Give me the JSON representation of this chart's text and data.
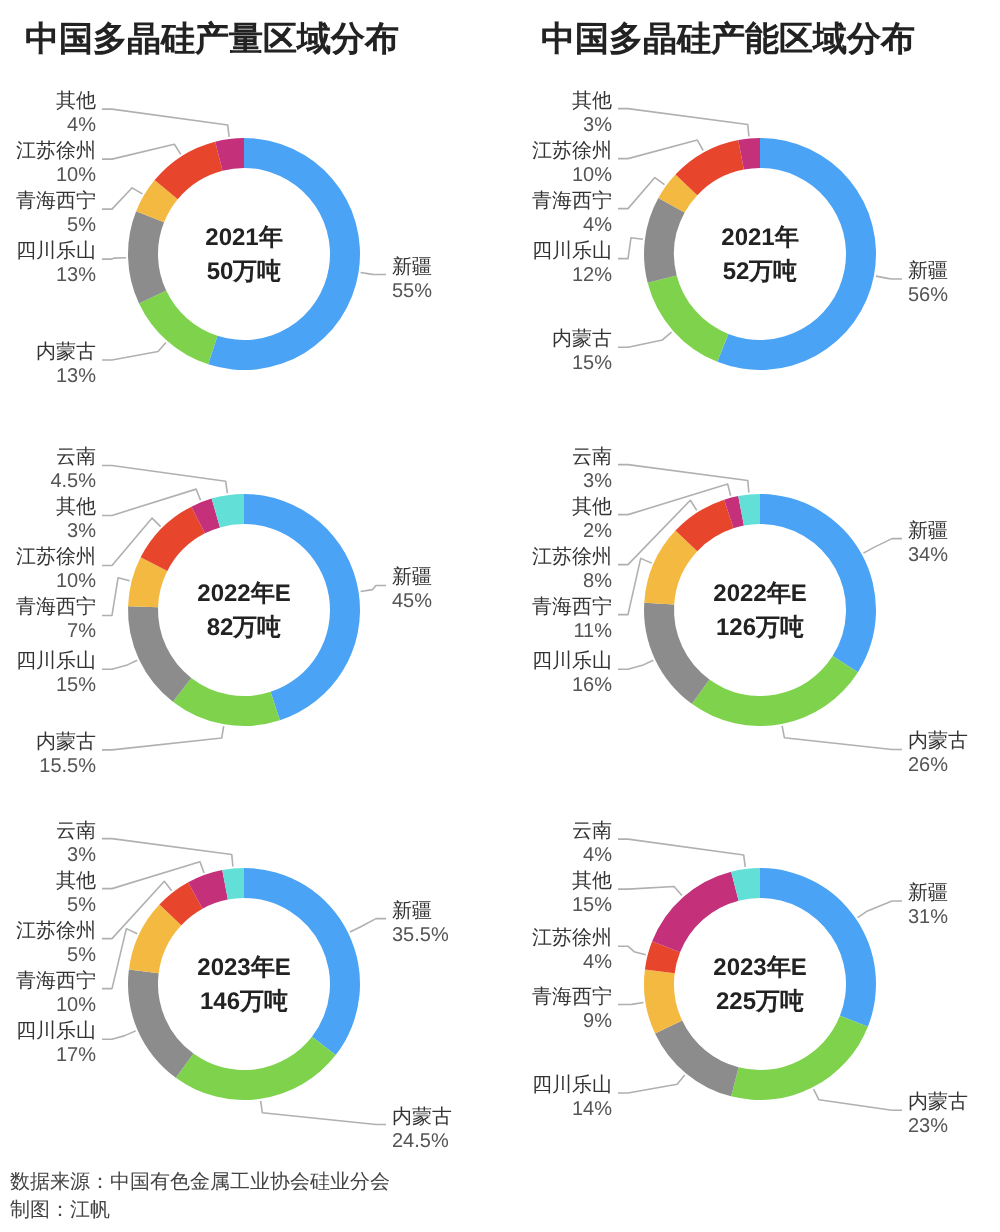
{
  "chart_data": [
    {
      "type": "donut",
      "title": "中国多晶硅产量区域分布",
      "annotations": [
        "2021年",
        "50万吨"
      ],
      "categories": [
        "新疆",
        "内蒙古",
        "四川乐山",
        "青海西宁",
        "江苏徐州",
        "其他"
      ],
      "values": [
        55,
        13,
        13,
        5,
        10,
        4
      ],
      "value_labels": [
        "55%",
        "13%",
        "13%",
        "5%",
        "10%",
        "4%"
      ],
      "colors": [
        "#4ba3f6",
        "#7ed24c",
        "#8c8c8c",
        "#f4b940",
        "#e8452d",
        "#c4307a"
      ]
    },
    {
      "type": "donut",
      "annotations": [
        "2022年E",
        "82万吨"
      ],
      "categories": [
        "新疆",
        "内蒙古",
        "四川乐山",
        "青海西宁",
        "江苏徐州",
        "其他",
        "云南"
      ],
      "values": [
        45,
        15.5,
        15,
        7,
        10,
        3,
        4.5
      ],
      "value_labels": [
        "45%",
        "15.5%",
        "15%",
        "7%",
        "10%",
        "3%",
        "4.5%"
      ],
      "colors": [
        "#4ba3f6",
        "#7ed24c",
        "#8c8c8c",
        "#f4b940",
        "#e8452d",
        "#c4307a",
        "#62e0d8"
      ]
    },
    {
      "type": "donut",
      "annotations": [
        "2023年E",
        "146万吨"
      ],
      "categories": [
        "新疆",
        "内蒙古",
        "四川乐山",
        "青海西宁",
        "江苏徐州",
        "其他",
        "云南"
      ],
      "values": [
        35.5,
        24.5,
        17,
        10,
        5,
        5,
        3
      ],
      "value_labels": [
        "35.5%",
        "24.5%",
        "17%",
        "10%",
        "5%",
        "5%",
        "3%"
      ],
      "colors": [
        "#4ba3f6",
        "#7ed24c",
        "#8c8c8c",
        "#f4b940",
        "#e8452d",
        "#c4307a",
        "#62e0d8"
      ]
    },
    {
      "type": "donut",
      "title": "中国多晶硅产能区域分布",
      "annotations": [
        "2021年",
        "52万吨"
      ],
      "categories": [
        "新疆",
        "内蒙古",
        "四川乐山",
        "青海西宁",
        "江苏徐州",
        "其他"
      ],
      "values": [
        56,
        15,
        12,
        4,
        10,
        3
      ],
      "value_labels": [
        "56%",
        "15%",
        "12%",
        "4%",
        "10%",
        "3%"
      ],
      "colors": [
        "#4ba3f6",
        "#7ed24c",
        "#8c8c8c",
        "#f4b940",
        "#e8452d",
        "#c4307a"
      ]
    },
    {
      "type": "donut",
      "annotations": [
        "2022年E",
        "126万吨"
      ],
      "categories": [
        "新疆",
        "内蒙古",
        "四川乐山",
        "青海西宁",
        "江苏徐州",
        "其他",
        "云南"
      ],
      "values": [
        34,
        26,
        16,
        11,
        8,
        2,
        3
      ],
      "value_labels": [
        "34%",
        "26%",
        "16%",
        "11%",
        "8%",
        "2%",
        "3%"
      ],
      "colors": [
        "#4ba3f6",
        "#7ed24c",
        "#8c8c8c",
        "#f4b940",
        "#e8452d",
        "#c4307a",
        "#62e0d8"
      ]
    },
    {
      "type": "donut",
      "annotations": [
        "2023年E",
        "225万吨"
      ],
      "categories": [
        "新疆",
        "内蒙古",
        "四川乐山",
        "青海西宁",
        "江苏徐州",
        "其他",
        "云南"
      ],
      "values": [
        31,
        23,
        14,
        9,
        4,
        15,
        4
      ],
      "value_labels": [
        "31%",
        "23%",
        "14%",
        "9%",
        "4%",
        "15%",
        "4%"
      ],
      "colors": [
        "#4ba3f6",
        "#7ed24c",
        "#8c8c8c",
        "#f4b940",
        "#e8452d",
        "#c4307a",
        "#62e0d8"
      ]
    },
    {
      "type": "other",
      "annotations": [
        "数据来源：中国有色金属工业协会硅业分会",
        "制图：江帆"
      ]
    }
  ]
}
